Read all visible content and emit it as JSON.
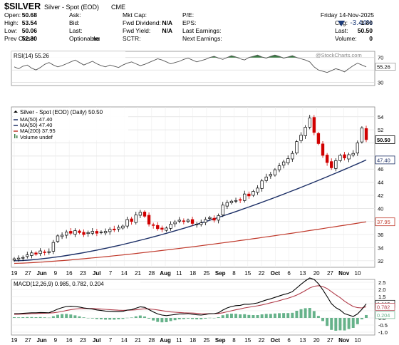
{
  "header": {
    "symbol": "$SILVER",
    "name": "Silver - Spot (EOD)",
    "exchange": "CME",
    "date": "Friday  14-Nov-2025",
    "change_pct": "-3.44%",
    "fields": [
      {
        "label": "Open:",
        "value": "50.68"
      },
      {
        "label": "High:",
        "value": "53.54"
      },
      {
        "label": "Low:",
        "value": "50.06"
      },
      {
        "label": "Prev Close:",
        "value": "52.30"
      },
      {
        "label": "Ask:",
        "value": ""
      },
      {
        "label": "Bid:",
        "value": ""
      },
      {
        "label": "Last:",
        "value": ""
      },
      {
        "label": "Optionable:",
        "value": "no"
      },
      {
        "label": "Mkt Cap:",
        "value": ""
      },
      {
        "label": "Fwd Dividend:",
        "value": "N/A"
      },
      {
        "label": "Fwd Yield:",
        "value": "N/A"
      },
      {
        "label": "SCTR:",
        "value": ""
      },
      {
        "label": "P/E:",
        "value": ""
      },
      {
        "label": "EPS:",
        "value": ""
      },
      {
        "label": "Last Earnings:",
        "value": ""
      },
      {
        "label": "Next Earnings:",
        "value": ""
      },
      {
        "label": "Chg:",
        "value": "-1.80"
      },
      {
        "label": "Last:",
        "value": "50.50"
      },
      {
        "label": "Volume:",
        "value": "0"
      }
    ],
    "watermark": "@StockCharts.com"
  },
  "colors": {
    "up": "#000000",
    "down": "#d00000",
    "ma50": "#1c2f66",
    "ma200": "#c0392b",
    "rsi_fill": "#3a7d44",
    "macd_line": "#000000",
    "signal_line": "#b03a48",
    "histogram": "#66b28a"
  },
  "chart_data": [
    {
      "type": "line",
      "panel": "RSI",
      "legend": "RSI(14) 55.26",
      "y_ticks": [
        30,
        50,
        70
      ],
      "ylim": [
        25,
        80
      ],
      "last_value": 55.26,
      "values": [
        55,
        52,
        56,
        58,
        53,
        50,
        54,
        59,
        62,
        58,
        55,
        57,
        60,
        63,
        66,
        62,
        58,
        61,
        64,
        60,
        57,
        55,
        58,
        56,
        54,
        58,
        61,
        63,
        60,
        57,
        59,
        62,
        65,
        68,
        66,
        63,
        60,
        62,
        64,
        67,
        69,
        66,
        63,
        65,
        67,
        70,
        72,
        69,
        67,
        70,
        73,
        71,
        68,
        66,
        70,
        72,
        74,
        71,
        69,
        72,
        74,
        72,
        69,
        71,
        73,
        70,
        68,
        66,
        63,
        55,
        50,
        48,
        46,
        49,
        52,
        50,
        47,
        52,
        57,
        61,
        58,
        55
      ]
    },
    {
      "type": "candlestick",
      "panel": "Price",
      "legend": [
        "Silver - Spot (EOD) (Daily) 50.50",
        "MA(50) 47.40",
        "MA(50) 47.40",
        "MA(200) 37.95",
        "Volume undef"
      ],
      "y_ticks": [
        32,
        34,
        36,
        38,
        40,
        42,
        44,
        46,
        48,
        50,
        52,
        54
      ],
      "ylim": [
        31,
        55.5
      ],
      "x_ticks": [
        "19",
        "27",
        "Jun",
        "9",
        "16",
        "23",
        "Jul",
        "7",
        "14",
        "21",
        "28",
        "Aug",
        "11",
        "18",
        "25",
        "Sep",
        "8",
        "15",
        "22",
        "Oct",
        "6",
        "13",
        "20",
        "27",
        "Nov",
        "10"
      ],
      "last_close": 50.5,
      "ma50_last": 47.4,
      "ma200_last": 37.95,
      "close": [
        32.3,
        32.4,
        32.5,
        32.9,
        33.2,
        33.0,
        33.5,
        33.3,
        33.4,
        34.8,
        35.8,
        35.9,
        36.4,
        36.2,
        36.6,
        36.3,
        36.0,
        36.3,
        36.5,
        36.2,
        36.4,
        36.5,
        36.8,
        36.7,
        37.1,
        37.3,
        38.3,
        38.0,
        39.0,
        39.4,
        38.8,
        37.6,
        37.4,
        36.9,
        36.8,
        37.0,
        37.6,
        37.9,
        38.2,
        38.0,
        38.2,
        37.7,
        37.6,
        37.8,
        38.3,
        38.6,
        38.2,
        38.9,
        40.5,
        40.9,
        41.1,
        41.2,
        41.3,
        42.2,
        41.9,
        42.6,
        43.1,
        44.2,
        44.8,
        45.2,
        45.9,
        46.5,
        47.1,
        47.6,
        48.4,
        50.2,
        51.2,
        52.4,
        53.8,
        51.6,
        49.9,
        48.1,
        47.0,
        46.2,
        47.3,
        48.1,
        47.7,
        48.2,
        48.4,
        50.0,
        52.3,
        50.5
      ]
    },
    {
      "type": "line",
      "panel": "MACD",
      "legend": "MACD(12,26,9) 0.985, 0.782, 0.204",
      "y_ticks": [
        -1.0,
        -0.5,
        0.0,
        0.5,
        1.0,
        1.5,
        2.0,
        2.5
      ],
      "ylim": [
        -1.2,
        2.7
      ],
      "macd_last": 0.985,
      "signal_last": 0.782,
      "histogram_last": 0.204,
      "macd": [
        0.3,
        0.3,
        0.32,
        0.34,
        0.36,
        0.36,
        0.38,
        0.37,
        0.36,
        0.48,
        0.62,
        0.72,
        0.8,
        0.82,
        0.8,
        0.76,
        0.7,
        0.66,
        0.62,
        0.56,
        0.52,
        0.48,
        0.46,
        0.44,
        0.44,
        0.46,
        0.55,
        0.58,
        0.68,
        0.78,
        0.74,
        0.58,
        0.42,
        0.28,
        0.2,
        0.16,
        0.2,
        0.24,
        0.28,
        0.28,
        0.3,
        0.26,
        0.22,
        0.2,
        0.24,
        0.3,
        0.3,
        0.36,
        0.55,
        0.7,
        0.8,
        0.86,
        0.88,
        0.96,
        0.96,
        1.0,
        1.05,
        1.16,
        1.26,
        1.34,
        1.44,
        1.54,
        1.64,
        1.72,
        1.84,
        2.1,
        2.36,
        2.6,
        2.8,
        2.7,
        2.4,
        1.98,
        1.5,
        1.0,
        0.72,
        0.55,
        0.3,
        0.2,
        0.1,
        0.28,
        0.6,
        0.985
      ],
      "signal": [
        0.25,
        0.26,
        0.27,
        0.28,
        0.3,
        0.31,
        0.32,
        0.33,
        0.34,
        0.36,
        0.4,
        0.45,
        0.52,
        0.58,
        0.62,
        0.65,
        0.66,
        0.66,
        0.66,
        0.64,
        0.62,
        0.6,
        0.58,
        0.56,
        0.54,
        0.53,
        0.54,
        0.55,
        0.57,
        0.61,
        0.64,
        0.63,
        0.6,
        0.56,
        0.51,
        0.46,
        0.42,
        0.4,
        0.38,
        0.36,
        0.35,
        0.34,
        0.32,
        0.3,
        0.29,
        0.29,
        0.3,
        0.31,
        0.36,
        0.43,
        0.5,
        0.57,
        0.63,
        0.7,
        0.75,
        0.8,
        0.85,
        0.91,
        0.98,
        1.06,
        1.13,
        1.21,
        1.3,
        1.38,
        1.48,
        1.6,
        1.75,
        1.92,
        2.1,
        2.22,
        2.26,
        2.2,
        2.06,
        1.84,
        1.62,
        1.42,
        1.18,
        0.98,
        0.8,
        0.72,
        0.7,
        0.782
      ]
    }
  ]
}
